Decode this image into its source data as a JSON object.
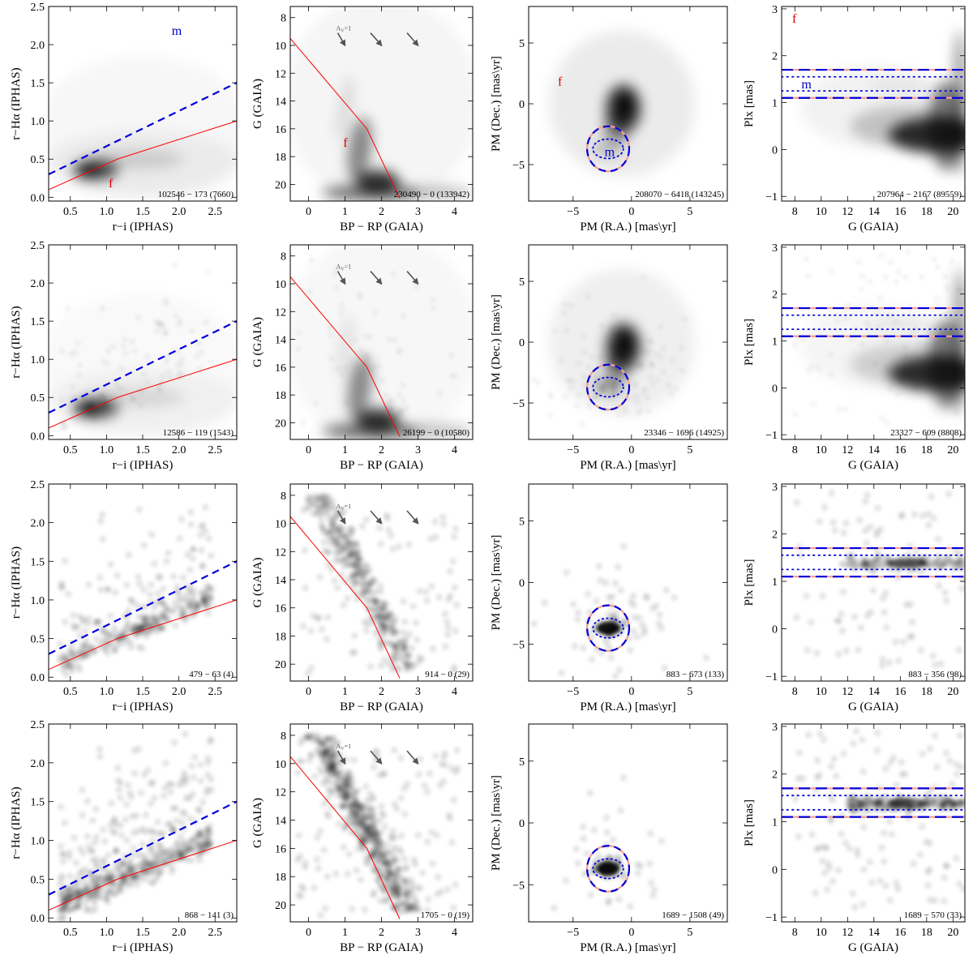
{
  "figure": {
    "colors": {
      "cut_line": "#ff0000",
      "locus_line": "#0000dd",
      "density": "#000000",
      "arrow": "#555555",
      "label_f": "#dd0000",
      "label_m": "#0000cc"
    },
    "rows": [
      {
        "stats": [
          "102546 − 173 (7660)",
          "230490 − 0 (133942)",
          "208070 − 6418 (143245)",
          "207964 − 2167 (89559)"
        ]
      },
      {
        "stats": [
          "12586 − 119 (1543)",
          "26199 − 0 (10580)",
          "23346 − 1696 (14925)",
          "23327 − 609 (8808)"
        ]
      },
      {
        "stats": [
          "479 − 63 (4)",
          "914 − 0 (29)",
          "883 − 673 (133)",
          "883 − 356 (98)"
        ]
      },
      {
        "stats": [
          "868 − 141 (3)",
          "1705 − 0 (19)",
          "1689 − 1508 (49)",
          "1689 − 570 (33)"
        ]
      }
    ],
    "labels": {
      "f": "f",
      "m": "m",
      "extinction": "A_V=1",
      "extinction_base": "A",
      "extinction_sub": "V",
      "extinction_tail": "=1"
    }
  },
  "chart_data": [
    {
      "type": "scatter",
      "column": "colour-colour",
      "xlabel": "r−i (IPHAS)",
      "ylabel": "r−Hα (IPHAS)",
      "xlim": [
        0.2,
        2.8
      ],
      "ylim": [
        -0.05,
        2.5
      ],
      "xticks": [
        0.5,
        1.0,
        1.5,
        2.0,
        2.5
      ],
      "xticklabels": [
        "0.5",
        "1.0",
        "1.5",
        "2.0",
        "2.5"
      ],
      "yticks": [
        0.0,
        0.5,
        1.0,
        1.5,
        2.0,
        2.5
      ],
      "yticklabels": [
        "0.0",
        "0.5",
        "1.0",
        "1.5",
        "2.0",
        "2.5"
      ],
      "lines": [
        {
          "name": "dashed-selection",
          "style": "dashed",
          "color": "#0000dd",
          "x": [
            0.2,
            2.8
          ],
          "y": [
            0.3,
            1.5
          ]
        },
        {
          "name": "red-locus",
          "style": "solid",
          "color": "#ff0000",
          "x": [
            0.2,
            1.15,
            2.8
          ],
          "y": [
            0.1,
            0.5,
            1.0
          ]
        }
      ]
    },
    {
      "type": "scatter",
      "column": "colour-magnitude",
      "xlabel": "BP − RP (GAIA)",
      "ylabel": "G (GAIA)",
      "xlim": [
        -0.5,
        4.5
      ],
      "ylim": [
        21.2,
        7.2
      ],
      "inverted_y": true,
      "xticks": [
        0,
        1,
        2,
        3,
        4
      ],
      "xticklabels": [
        "0",
        "1",
        "2",
        "3",
        "4"
      ],
      "yticks": [
        8,
        10,
        12,
        14,
        16,
        18,
        20
      ],
      "yticklabels": [
        "8",
        "10",
        "12",
        "14",
        "16",
        "18",
        "20"
      ],
      "lines": [
        {
          "name": "red-cut",
          "style": "solid",
          "color": "#ff0000",
          "x": [
            -0.5,
            1.6,
            2.5
          ],
          "y": [
            9.5,
            16.0,
            21.0
          ]
        }
      ],
      "arrows": [
        {
          "x": [
            0.8,
            1.0
          ],
          "y": [
            9.1,
            10.0
          ]
        },
        {
          "x": [
            1.7,
            2.0
          ],
          "y": [
            9.1,
            10.0
          ]
        },
        {
          "x": [
            2.7,
            3.0
          ],
          "y": [
            9.1,
            10.0
          ]
        }
      ]
    },
    {
      "type": "scatter",
      "column": "proper-motion",
      "xlabel": "PM (R.A.) [mas\\yr]",
      "ylabel": "PM (Dec.) [mas\\yr]",
      "xlim": [
        -8.8,
        8.2
      ],
      "ylim": [
        -8.0,
        8.0
      ],
      "xticks": [
        -5,
        0,
        5
      ],
      "xticklabels": [
        "−5",
        "0",
        "5"
      ],
      "yticks": [
        -5,
        0,
        5
      ],
      "yticklabels": [
        "−5",
        "0",
        "5"
      ],
      "ellipses": [
        {
          "name": "outer-circle",
          "style": "dashed",
          "cx": -2.0,
          "cy": -3.7,
          "rx": 1.8,
          "ry": 1.85
        },
        {
          "name": "inner-ellipse",
          "style": "dotted",
          "cx": -2.0,
          "cy": -3.7,
          "rx": 1.3,
          "ry": 0.8
        }
      ]
    },
    {
      "type": "scatter",
      "column": "parallax",
      "xlabel": "G (GAIA)",
      "ylabel": "Plx [mas]",
      "xlim": [
        7.0,
        20.9
      ],
      "ylim": [
        -1.1,
        3.05
      ],
      "xticks": [
        8,
        10,
        12,
        14,
        16,
        18,
        20
      ],
      "xticklabels": [
        "8",
        "10",
        "12",
        "14",
        "16",
        "18",
        "20"
      ],
      "yticks": [
        -1,
        0,
        1,
        2,
        3
      ],
      "yticklabels": [
        "−1",
        "0",
        "1",
        "2",
        "3"
      ],
      "hlines": [
        {
          "y": 1.7,
          "style": "dashed"
        },
        {
          "y": 1.55,
          "style": "dotted"
        },
        {
          "y": 1.25,
          "style": "dotted"
        },
        {
          "y": 1.1,
          "style": "dashed"
        }
      ]
    }
  ]
}
